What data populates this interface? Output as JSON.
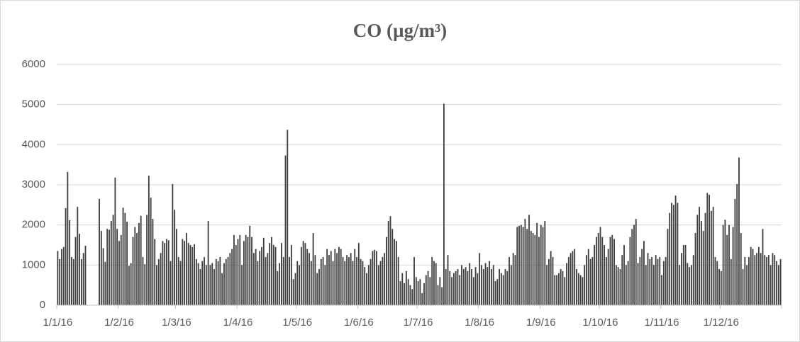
{
  "chart_data": {
    "type": "bar",
    "title": "CO (µg/m³)",
    "categories": [
      "1/1/16",
      null,
      null,
      null,
      null,
      null,
      null,
      null,
      null,
      null,
      null,
      null,
      null,
      null,
      null,
      null,
      null,
      null,
      null,
      null,
      null,
      null,
      null,
      null,
      null,
      null,
      null,
      null,
      null,
      null,
      null,
      "1/2/16",
      null,
      null,
      null,
      null,
      null,
      null,
      null,
      null,
      null,
      null,
      null,
      null,
      null,
      null,
      null,
      null,
      null,
      null,
      null,
      null,
      null,
      null,
      null,
      null,
      null,
      null,
      null,
      null,
      "1/3/16",
      null,
      null,
      null,
      null,
      null,
      null,
      null,
      null,
      null,
      null,
      null,
      null,
      null,
      null,
      null,
      null,
      null,
      null,
      null,
      null,
      null,
      null,
      null,
      null,
      null,
      null,
      null,
      null,
      null,
      null,
      "1/4/16",
      null,
      null,
      null,
      null,
      null,
      null,
      null,
      null,
      null,
      null,
      null,
      null,
      null,
      null,
      null,
      null,
      null,
      null,
      null,
      null,
      null,
      null,
      null,
      null,
      null,
      null,
      null,
      null,
      null,
      "1/5/16",
      null,
      null,
      null,
      null,
      null,
      null,
      null,
      null,
      null,
      null,
      null,
      null,
      null,
      null,
      null,
      null,
      null,
      null,
      null,
      null,
      null,
      null,
      null,
      null,
      null,
      null,
      null,
      null,
      null,
      null,
      "1/6/16",
      null,
      null,
      null,
      null,
      null,
      null,
      null,
      null,
      null,
      null,
      null,
      null,
      null,
      null,
      null,
      null,
      null,
      null,
      null,
      null,
      null,
      null,
      null,
      null,
      null,
      null,
      null,
      null,
      null,
      "1/7/16",
      null,
      null,
      null,
      null,
      null,
      null,
      null,
      null,
      null,
      null,
      null,
      null,
      null,
      null,
      null,
      null,
      null,
      null,
      null,
      null,
      null,
      null,
      null,
      null,
      null,
      null,
      null,
      null,
      null,
      null,
      "1/8/16",
      null,
      null,
      null,
      null,
      null,
      null,
      null,
      null,
      null,
      null,
      null,
      null,
      null,
      null,
      null,
      null,
      null,
      null,
      null,
      null,
      null,
      null,
      null,
      null,
      null,
      null,
      null,
      null,
      null,
      null,
      "1/9/16",
      null,
      null,
      null,
      null,
      null,
      null,
      null,
      null,
      null,
      null,
      null,
      null,
      null,
      null,
      null,
      null,
      null,
      null,
      null,
      null,
      null,
      null,
      null,
      null,
      null,
      null,
      null,
      null,
      null,
      "1/10/16",
      null,
      null,
      null,
      null,
      null,
      null,
      null,
      null,
      null,
      null,
      null,
      null,
      null,
      null,
      null,
      null,
      null,
      null,
      null,
      null,
      null,
      null,
      null,
      null,
      null,
      null,
      null,
      null,
      null,
      null,
      "1/11/16",
      null,
      null,
      null,
      null,
      null,
      null,
      null,
      null,
      null,
      null,
      null,
      null,
      null,
      null,
      null,
      null,
      null,
      null,
      null,
      null,
      null,
      null,
      null,
      null,
      null,
      null,
      null,
      null,
      null,
      "1/12/16",
      null,
      null,
      null,
      null,
      null,
      null,
      null,
      null,
      null,
      null,
      null,
      null,
      null,
      null,
      null,
      null,
      null,
      null,
      null,
      null,
      null,
      null,
      null,
      null,
      null,
      null,
      null,
      null,
      null,
      null
    ],
    "values": [
      1350,
      1150,
      1400,
      1450,
      2420,
      3320,
      2120,
      1200,
      1150,
      1700,
      2450,
      1780,
      1150,
      1300,
      1480,
      null,
      null,
      null,
      null,
      null,
      null,
      2650,
      1850,
      1420,
      1080,
      1900,
      1880,
      2100,
      2250,
      3180,
      1900,
      1600,
      1750,
      2430,
      2300,
      2080,
      980,
      1050,
      1700,
      1950,
      1800,
      2050,
      2230,
      1200,
      1020,
      2250,
      3230,
      2680,
      2150,
      1650,
      1000,
      1150,
      1300,
      1600,
      1550,
      1650,
      1620,
      1100,
      3020,
      2380,
      1900,
      1200,
      1100,
      1650,
      1600,
      1800,
      1550,
      1500,
      1450,
      1520,
      1150,
      1050,
      900,
      1100,
      1200,
      1000,
      2100,
      1000,
      1050,
      900,
      1150,
      1100,
      1200,
      800,
      1050,
      1150,
      1200,
      1300,
      1400,
      1750,
      1500,
      1650,
      1750,
      1000,
      1600,
      1750,
      1700,
      1980,
      1700,
      1300,
      1400,
      1100,
      1350,
      1450,
      1680,
      1200,
      1300,
      1550,
      1700,
      1500,
      1450,
      850,
      1050,
      1550,
      1200,
      3730,
      4370,
      1200,
      1500,
      650,
      800,
      1100,
      1000,
      1450,
      1600,
      1550,
      1400,
      1300,
      1100,
      1800,
      1250,
      800,
      900,
      1150,
      1200,
      1000,
      1400,
      1250,
      1350,
      1100,
      1400,
      1300,
      1450,
      1400,
      1200,
      1100,
      1250,
      1200,
      1300,
      1100,
      1400,
      1200,
      1550,
      1150,
      1100,
      950,
      800,
      1000,
      1150,
      1350,
      1380,
      1350,
      1000,
      1100,
      1200,
      1300,
      1700,
      2100,
      2220,
      1900,
      1650,
      1600,
      1200,
      600,
      800,
      550,
      850,
      650,
      500,
      400,
      1200,
      700,
      600,
      650,
      300,
      550,
      750,
      850,
      700,
      1200,
      1100,
      1050,
      500,
      700,
      450,
      5020,
      900,
      1250,
      850,
      700,
      800,
      850,
      900,
      750,
      1000,
      900,
      950,
      850,
      1050,
      900,
      700,
      950,
      800,
      1300,
      1000,
      900,
      1050,
      950,
      1100,
      900,
      1000,
      600,
      650,
      900,
      800,
      750,
      900,
      850,
      1200,
      1000,
      1300,
      1250,
      1950,
      1980,
      2000,
      1950,
      2150,
      1900,
      2250,
      1850,
      1800,
      1750,
      2050,
      1700,
      2000,
      1950,
      2100,
      1000,
      1150,
      1350,
      1200,
      750,
      750,
      800,
      900,
      850,
      700,
      1050,
      1200,
      1300,
      1350,
      1400,
      900,
      800,
      750,
      700,
      1000,
      1250,
      1400,
      1150,
      1200,
      1500,
      1700,
      1800,
      1950,
      1700,
      1500,
      1200,
      1400,
      1700,
      1750,
      1650,
      1000,
      950,
      900,
      1250,
      1500,
      1000,
      1100,
      1700,
      1900,
      2000,
      2150,
      1050,
      1200,
      1400,
      1600,
      1000,
      1300,
      1150,
      1200,
      1000,
      1250,
      1150,
      1200,
      750,
      1100,
      1200,
      1900,
      2300,
      2550,
      2500,
      2730,
      2550,
      1000,
      1300,
      1500,
      1500,
      1050,
      950,
      1000,
      1250,
      1800,
      2250,
      2450,
      2100,
      1850,
      2300,
      2800,
      2750,
      2350,
      2450,
      1200,
      1100,
      900,
      850,
      2000,
      2130,
      1750,
      2000,
      1150,
      1950,
      2650,
      3020,
      3680,
      1800,
      900,
      1200,
      1000,
      1200,
      1450,
      1400,
      1250,
      1300,
      1450,
      1300,
      1900,
      1250,
      1200,
      1250,
      1000,
      1300,
      1250,
      1100,
      1000,
      1150
    ],
    "color": "#3f3f3f",
    "ylim": [
      0,
      6000
    ],
    "yticks": [
      0,
      1000,
      2000,
      3000,
      4000,
      5000,
      6000
    ],
    "grid": true
  }
}
